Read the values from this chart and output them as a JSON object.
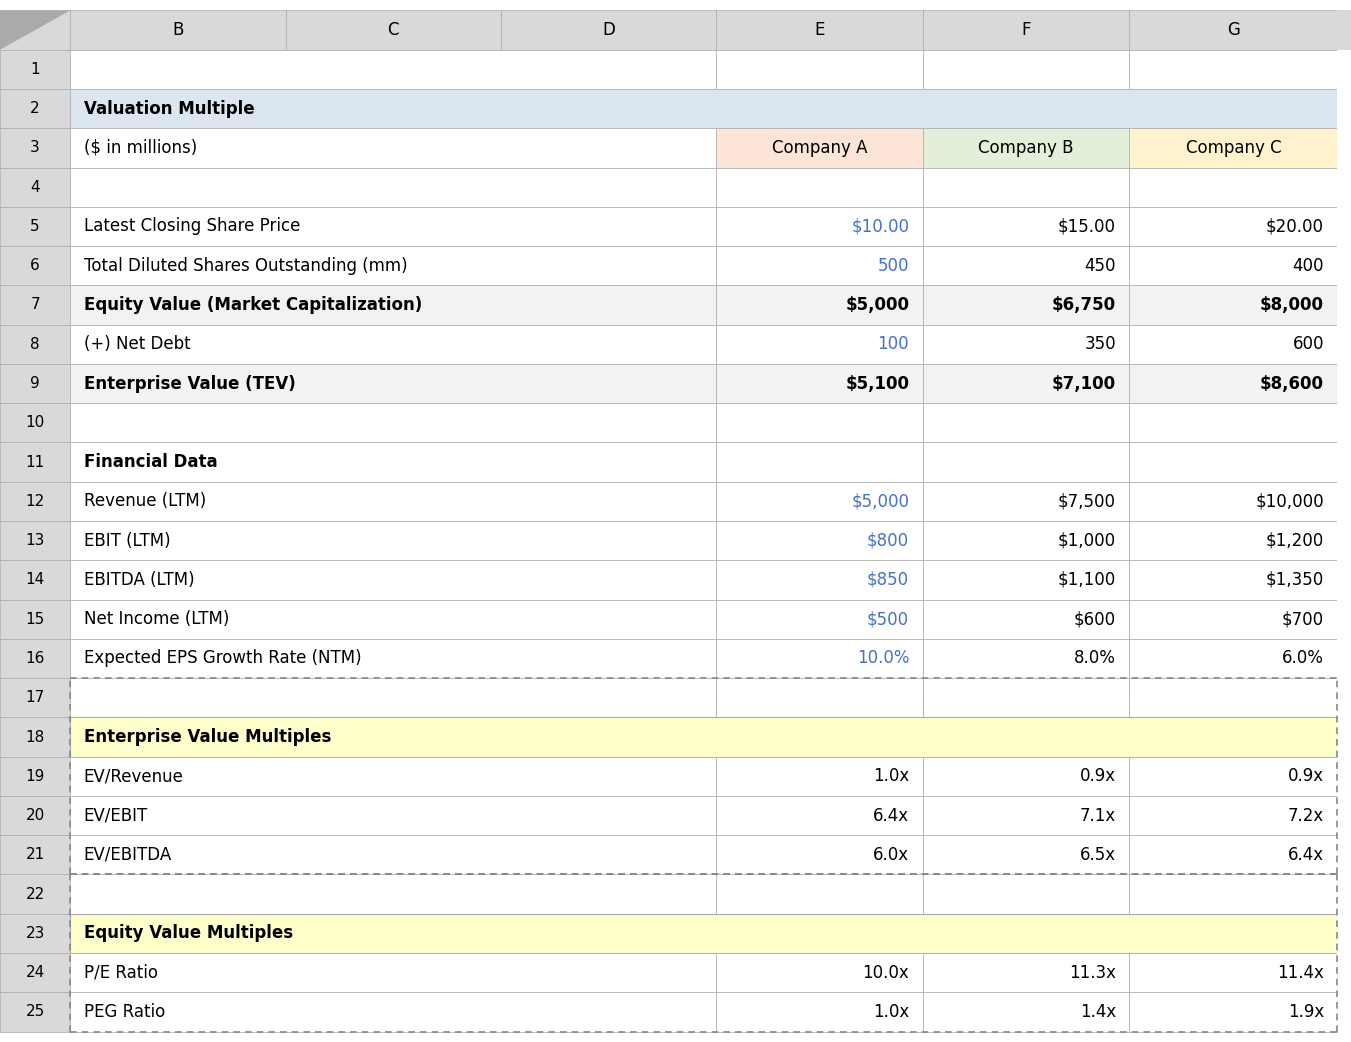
{
  "col_header_bg": "#d9d9d9",
  "row_header_bg": "#d9d9d9",
  "blue_text_color": "#4472c4",
  "black_text_color": "#000000",
  "valuation_bg": "#dce6f1",
  "company_a_bg": "#fce4d6",
  "company_b_bg": "#e2efda",
  "company_c_bg": "#fff2cc",
  "section_gray_bg": "#f2f2f2",
  "multiples_bg": "#ffffcc",
  "white_bg": "#ffffff",
  "border_color": "#aaaaaa",
  "dashed_color": "#888888",
  "rows": [
    {
      "row": 1,
      "label": "",
      "e": "",
      "f": "",
      "g": "",
      "bold": false,
      "bg": "#ffffff",
      "label_bg": "#ffffff"
    },
    {
      "row": 2,
      "label": "Valuation Multiple",
      "e": "",
      "f": "",
      "g": "",
      "bold": true,
      "bg": "#dce6f1",
      "label_bg": "#dce6f1",
      "span_all": true
    },
    {
      "row": 3,
      "label": "($ in millions)",
      "e": "Company A",
      "f": "Company B",
      "g": "Company C",
      "bold": false,
      "bg": "#ffffff",
      "label_bg": "#ffffff",
      "e_bg": "#fce4d6",
      "f_bg": "#e2efda",
      "g_bg": "#fff2cc",
      "center_efg": true
    },
    {
      "row": 4,
      "label": "",
      "e": "",
      "f": "",
      "g": "",
      "bold": false,
      "bg": "#ffffff",
      "label_bg": "#ffffff"
    },
    {
      "row": 5,
      "label": "Latest Closing Share Price",
      "e": "$10.00",
      "f": "$15.00",
      "g": "$20.00",
      "bold": false,
      "bg": "#ffffff",
      "label_bg": "#ffffff",
      "e_blue": true
    },
    {
      "row": 6,
      "label": "Total Diluted Shares Outstanding (mm)",
      "e": "500",
      "f": "450",
      "g": "400",
      "bold": false,
      "bg": "#ffffff",
      "label_bg": "#ffffff",
      "e_blue": true
    },
    {
      "row": 7,
      "label": "Equity Value (Market Capitalization)",
      "e": "$5,000",
      "f": "$6,750",
      "g": "$8,000",
      "bold": true,
      "bg": "#f2f2f2",
      "label_bg": "#f2f2f2"
    },
    {
      "row": 8,
      "label": "(+) Net Debt",
      "e": "100",
      "f": "350",
      "g": "600",
      "bold": false,
      "bg": "#ffffff",
      "label_bg": "#ffffff",
      "e_blue": true
    },
    {
      "row": 9,
      "label": "Enterprise Value (TEV)",
      "e": "$5,100",
      "f": "$7,100",
      "g": "$8,600",
      "bold": true,
      "bg": "#f2f2f2",
      "label_bg": "#f2f2f2"
    },
    {
      "row": 10,
      "label": "",
      "e": "",
      "f": "",
      "g": "",
      "bold": false,
      "bg": "#ffffff",
      "label_bg": "#ffffff"
    },
    {
      "row": 11,
      "label": "Financial Data",
      "e": "",
      "f": "",
      "g": "",
      "bold": true,
      "bg": "#ffffff",
      "label_bg": "#ffffff"
    },
    {
      "row": 12,
      "label": "Revenue (LTM)",
      "e": "$5,000",
      "f": "$7,500",
      "g": "$10,000",
      "bold": false,
      "bg": "#ffffff",
      "label_bg": "#ffffff",
      "e_blue": true
    },
    {
      "row": 13,
      "label": "EBIT (LTM)",
      "e": "$800",
      "f": "$1,000",
      "g": "$1,200",
      "bold": false,
      "bg": "#ffffff",
      "label_bg": "#ffffff",
      "e_blue": true
    },
    {
      "row": 14,
      "label": "EBITDA (LTM)",
      "e": "$850",
      "f": "$1,100",
      "g": "$1,350",
      "bold": false,
      "bg": "#ffffff",
      "label_bg": "#ffffff",
      "e_blue": true
    },
    {
      "row": 15,
      "label": "Net Income (LTM)",
      "e": "$500",
      "f": "$600",
      "g": "$700",
      "bold": false,
      "bg": "#ffffff",
      "label_bg": "#ffffff",
      "e_blue": true
    },
    {
      "row": 16,
      "label": "Expected EPS Growth Rate (NTM)",
      "e": "10.0%",
      "f": "8.0%",
      "g": "6.0%",
      "bold": false,
      "bg": "#ffffff",
      "label_bg": "#ffffff",
      "e_blue": true
    },
    {
      "row": 17,
      "label": "",
      "e": "",
      "f": "",
      "g": "",
      "bold": false,
      "bg": "#ffffff",
      "label_bg": "#ffffff"
    },
    {
      "row": 18,
      "label": "Enterprise Value Multiples",
      "e": "",
      "f": "",
      "g": "",
      "bold": true,
      "bg": "#ffffcc",
      "label_bg": "#ffffcc",
      "span_label": true
    },
    {
      "row": 19,
      "label": "EV/Revenue",
      "e": "1.0x",
      "f": "0.9x",
      "g": "0.9x",
      "bold": false,
      "bg": "#ffffff",
      "label_bg": "#ffffff"
    },
    {
      "row": 20,
      "label": "EV/EBIT",
      "e": "6.4x",
      "f": "7.1x",
      "g": "7.2x",
      "bold": false,
      "bg": "#ffffff",
      "label_bg": "#ffffff"
    },
    {
      "row": 21,
      "label": "EV/EBITDA",
      "e": "6.0x",
      "f": "6.5x",
      "g": "6.4x",
      "bold": false,
      "bg": "#ffffff",
      "label_bg": "#ffffff"
    },
    {
      "row": 22,
      "label": "",
      "e": "",
      "f": "",
      "g": "",
      "bold": false,
      "bg": "#ffffff",
      "label_bg": "#ffffff"
    },
    {
      "row": 23,
      "label": "Equity Value Multiples",
      "e": "",
      "f": "",
      "g": "",
      "bold": true,
      "bg": "#ffffcc",
      "label_bg": "#ffffcc",
      "span_label": true
    },
    {
      "row": 24,
      "label": "P/E Ratio",
      "e": "10.0x",
      "f": "11.3x",
      "g": "11.4x",
      "bold": false,
      "bg": "#ffffff",
      "label_bg": "#ffffff"
    },
    {
      "row": 25,
      "label": "PEG Ratio",
      "e": "1.0x",
      "f": "1.4x",
      "g": "1.9x",
      "bold": false,
      "bg": "#ffffff",
      "label_bg": "#ffffff"
    }
  ],
  "fig_width": 13.51,
  "fig_height": 10.42,
  "font_size": 12.0,
  "col_header_fontsize": 12.0
}
